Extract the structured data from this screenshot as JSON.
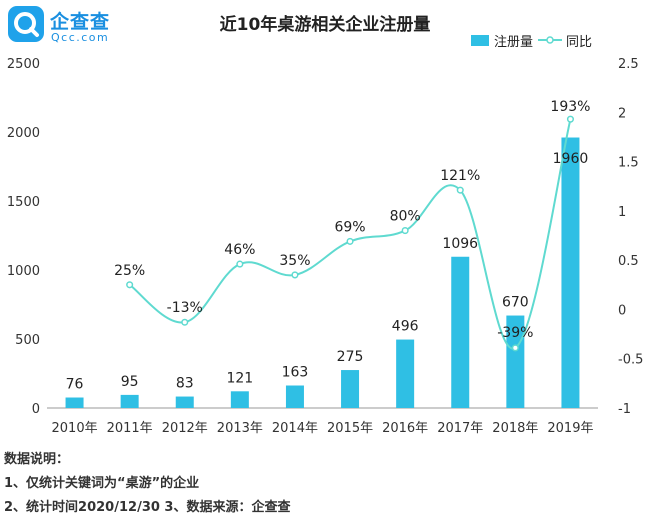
{
  "logo": {
    "cn": "企查查",
    "en": "Qcc.com"
  },
  "colors": {
    "bar": "#2fbfe4",
    "line": "#5fdad0",
    "axis": "#999999",
    "brand": "#1a8fe0"
  },
  "chart_data": {
    "type": "bar+line",
    "title": "近10年桌游相关企业注册量",
    "categories": [
      "2010年",
      "2011年",
      "2012年",
      "2013年",
      "2014年",
      "2015年",
      "2016年",
      "2017年",
      "2018年",
      "2019年"
    ],
    "series": [
      {
        "name": "注册量",
        "type": "bar",
        "axis": "left",
        "values": [
          76,
          95,
          83,
          121,
          163,
          275,
          496,
          1096,
          670,
          1960
        ],
        "labels": [
          "76",
          "95",
          "83",
          "121",
          "163",
          "275",
          "496",
          "1096",
          "670",
          "1960"
        ]
      },
      {
        "name": "同比",
        "type": "line",
        "axis": "right",
        "values": [
          null,
          0.25,
          -0.13,
          0.46,
          0.35,
          0.69,
          0.8,
          1.21,
          -0.39,
          1.93
        ],
        "labels": [
          "",
          "25%",
          "-13%",
          "46%",
          "35%",
          "69%",
          "80%",
          "121%",
          "-39%",
          "193%"
        ]
      }
    ],
    "y_left": {
      "range": [
        0,
        2500
      ],
      "ticks": [
        "0",
        "500",
        "1000",
        "1500",
        "2000",
        "2500"
      ],
      "tick_values": [
        0,
        500,
        1000,
        1500,
        2000,
        2500
      ]
    },
    "y_right": {
      "range": [
        -1,
        2.5
      ],
      "ticks": [
        "-1",
        "-0.5",
        "0",
        "0.5",
        "1",
        "1.5",
        "2",
        "2.5"
      ],
      "tick_values": [
        -1,
        -0.5,
        0,
        0.5,
        1,
        1.5,
        2,
        2.5
      ]
    },
    "legend": {
      "position": "top-right",
      "items": [
        "注册量",
        "同比"
      ]
    },
    "grid": false
  },
  "notes": {
    "heading": "数据说明：",
    "line1": "1、仅统计关键词为“桌游”的企业",
    "line2": "2、统计时间2020/12/30   3、数据来源：企查查"
  }
}
